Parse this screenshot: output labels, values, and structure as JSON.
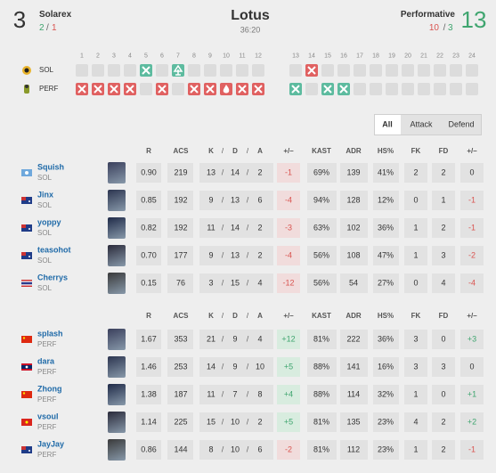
{
  "header": {
    "left_team": {
      "score": "3",
      "name": "Solarex",
      "record": [
        "2",
        "1"
      ]
    },
    "map": "Lotus",
    "duration": "36:20",
    "right_team": {
      "score": "13",
      "name": "Performative",
      "record": [
        "10",
        "3"
      ]
    },
    "separator": "/"
  },
  "rounds": {
    "numbers": [
      1,
      2,
      3,
      4,
      5,
      6,
      7,
      8,
      9,
      10,
      11,
      12,
      13,
      14,
      15,
      16,
      17,
      18,
      19,
      20,
      21,
      22,
      23,
      24
    ],
    "teams": [
      "SOL",
      "PERF"
    ]
  },
  "tabs": [
    "All",
    "Attack",
    "Defend"
  ],
  "table": {
    "columns": [
      "R",
      "ACS",
      "K",
      "D",
      "A",
      "+/–",
      "KAST",
      "ADR",
      "HS%",
      "FK",
      "FD",
      "+/–"
    ],
    "separator": "/",
    "teams": [
      {
        "players": [
          {
            "name": "Squish",
            "team": "SOL",
            "stats": [
              "0.90",
              "219",
              "13",
              "14",
              "2",
              "-1",
              "69%",
              "139",
              "41%",
              "2",
              "2",
              "0"
            ]
          },
          {
            "name": "Jinx",
            "team": "SOL",
            "stats": [
              "0.85",
              "192",
              "9",
              "13",
              "6",
              "-4",
              "94%",
              "128",
              "12%",
              "0",
              "1",
              "-1"
            ]
          },
          {
            "name": "yoppy",
            "team": "SOL",
            "stats": [
              "0.82",
              "192",
              "11",
              "14",
              "2",
              "-3",
              "63%",
              "102",
              "36%",
              "1",
              "2",
              "-1"
            ]
          },
          {
            "name": "teasohot",
            "team": "SOL",
            "stats": [
              "0.70",
              "177",
              "9",
              "13",
              "2",
              "-4",
              "56%",
              "108",
              "47%",
              "1",
              "3",
              "-2"
            ]
          },
          {
            "name": "Cherrys",
            "team": "SOL",
            "stats": [
              "0.15",
              "76",
              "3",
              "15",
              "4",
              "-12",
              "56%",
              "54",
              "27%",
              "0",
              "4",
              "-4"
            ]
          }
        ]
      },
      {
        "players": [
          {
            "name": "splash",
            "team": "PERF",
            "stats": [
              "1.67",
              "353",
              "21",
              "9",
              "4",
              "+12",
              "81%",
              "222",
              "36%",
              "3",
              "0",
              "+3"
            ]
          },
          {
            "name": "dara",
            "team": "PERF",
            "stats": [
              "1.46",
              "253",
              "14",
              "9",
              "10",
              "+5",
              "88%",
              "141",
              "16%",
              "3",
              "3",
              "0"
            ]
          },
          {
            "name": "Zhong",
            "team": "PERF",
            "stats": [
              "1.38",
              "187",
              "11",
              "7",
              "8",
              "+4",
              "88%",
              "114",
              "32%",
              "1",
              "0",
              "+1"
            ]
          },
          {
            "name": "vsoul",
            "team": "PERF",
            "stats": [
              "1.14",
              "225",
              "15",
              "10",
              "2",
              "+5",
              "81%",
              "135",
              "23%",
              "4",
              "2",
              "+2"
            ]
          },
          {
            "name": "JayJay",
            "team": "PERF",
            "stats": [
              "0.86",
              "144",
              "8",
              "10",
              "6",
              "-2",
              "81%",
              "112",
              "23%",
              "1",
              "2",
              "-1"
            ]
          }
        ]
      }
    ]
  }
}
